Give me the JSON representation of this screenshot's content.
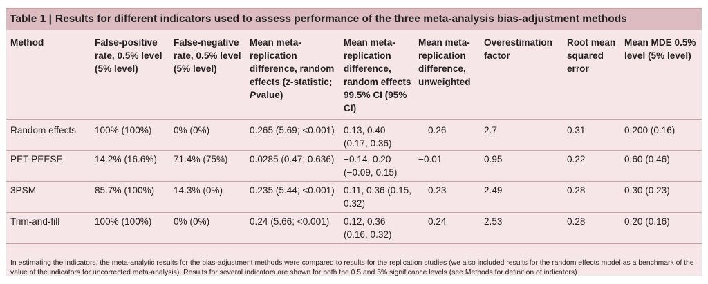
{
  "table": {
    "title_number": "Table 1 |",
    "title": "Results for different indicators used to assess performance of the three meta-analysis bias-adjustment methods",
    "columns": [
      "Method",
      "False-positive rate, 0.5% level (5% level)",
      "False-negative rate, 0.5% level (5% level)",
      "Mean meta-replication difference, random effects (z-statistic;",
      "Mean meta-replication difference, random effects 99.5% CI (95% CI)",
      "Mean meta-replication difference, unweighted",
      "Overestimation factor",
      "Root mean squared error",
      "Mean MDE 0.5% level (5% level)"
    ],
    "column3_pvalue_label": "P",
    "column3_pvalue_suffix": "value)",
    "rows": [
      [
        "Random effects",
        "100% (100%)",
        "0% (0%)",
        "0.265 (5.69; <0.001)",
        "0.13, 0.40 (0.17, 0.36)",
        "0.26",
        "2.7",
        "0.31",
        "0.200 (0.16)"
      ],
      [
        "PET-PEESE",
        "14.2% (16.6%)",
        "71.4% (75%)",
        "0.0285 (0.47; 0.636)",
        "−0.14, 0.20 (−0.09, 0.15)",
        "−0.01",
        "0.95",
        "0.22",
        "0.60 (0.46)"
      ],
      [
        "3PSM",
        "85.7% (100%)",
        "14.3% (0%)",
        "0.235 (5.44; <0.001)",
        "0.11, 0.36 (0.15, 0.32)",
        "0.23",
        "2.49",
        "0.28",
        "0.30 (0.23)"
      ],
      [
        "Trim-and-fill",
        "100% (100%)",
        "0% (0%)",
        "0.24 (5.66; <0.001)",
        "0.12, 0.36 (0.16, 0.32)",
        "0.24",
        "2.53",
        "0.28",
        "0.20 (0.16)"
      ]
    ],
    "footnote": "In estimating the indicators, the meta-analytic results for the bias-adjustment methods were compared to results for the replication studies (we also included results for the random effects model as a benchmark of the value of the indicators for uncorrected meta-analysis). Results for several indicators are shown for both the 0.5 and 5% significance levels (see Methods for definition of indicators)."
  },
  "colors": {
    "title_bar": "#dcbcc0",
    "table_bg": "#f6e6e7",
    "rule": "#c9a0a4"
  }
}
